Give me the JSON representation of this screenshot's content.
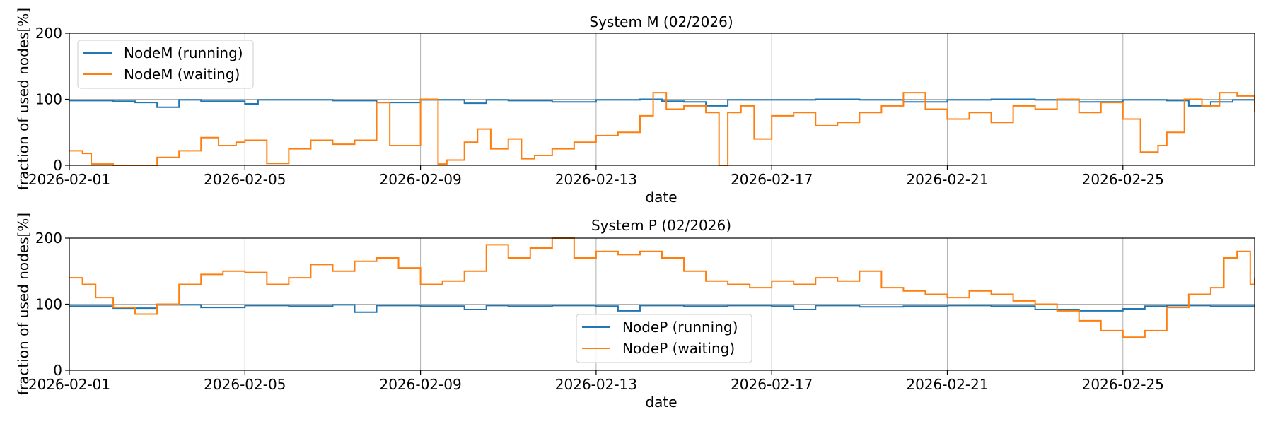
{
  "chart_data": [
    {
      "type": "line",
      "title": "System M (02/2026)",
      "xlabel": "date",
      "ylabel": "fraction of used nodes[%]",
      "xlim": [
        "2026-02-01",
        "2026-02-28"
      ],
      "ylim": [
        0,
        200
      ],
      "yticks": [
        0,
        100,
        200
      ],
      "xticks": [
        "2026-02-01",
        "2026-02-05",
        "2026-02-09",
        "2026-02-13",
        "2026-02-17",
        "2026-02-21",
        "2026-02-25"
      ],
      "grid": true,
      "legend_position": "upper-left",
      "series": [
        {
          "name": "NodeM (running)",
          "color": "#1f77b4",
          "points": [
            [
              0,
              98
            ],
            [
              1,
              97
            ],
            [
              1.5,
              95
            ],
            [
              2,
              88
            ],
            [
              2.5,
              99
            ],
            [
              3,
              97
            ],
            [
              4,
              93
            ],
            [
              4.3,
              99
            ],
            [
              5,
              99
            ],
            [
              6,
              98
            ],
            [
              7,
              95
            ],
            [
              8,
              99
            ],
            [
              9,
              94
            ],
            [
              9.5,
              99
            ],
            [
              10,
              98
            ],
            [
              11,
              96
            ],
            [
              12,
              99
            ],
            [
              13,
              100
            ],
            [
              13.5,
              97
            ],
            [
              14,
              96
            ],
            [
              14.5,
              90
            ],
            [
              15,
              99
            ],
            [
              16,
              99
            ],
            [
              17,
              100
            ],
            [
              18,
              99
            ],
            [
              19,
              96
            ],
            [
              20,
              99
            ],
            [
              21,
              100
            ],
            [
              22,
              99
            ],
            [
              23,
              96
            ],
            [
              24,
              99
            ],
            [
              25,
              98
            ],
            [
              25.5,
              90
            ],
            [
              26,
              96
            ],
            [
              26.5,
              99
            ],
            [
              27,
              98
            ]
          ]
        },
        {
          "name": "NodeM (waiting)",
          "color": "#ff7f0e",
          "points": [
            [
              0,
              22
            ],
            [
              0.3,
              18
            ],
            [
              0.5,
              2
            ],
            [
              1,
              0
            ],
            [
              1.8,
              0
            ],
            [
              2,
              12
            ],
            [
              2.5,
              22
            ],
            [
              3,
              42
            ],
            [
              3.4,
              30
            ],
            [
              3.8,
              35
            ],
            [
              4,
              38
            ],
            [
              4.5,
              3
            ],
            [
              5,
              25
            ],
            [
              5.5,
              38
            ],
            [
              6,
              32
            ],
            [
              6.5,
              38
            ],
            [
              7,
              95
            ],
            [
              7.3,
              30
            ],
            [
              7.6,
              30
            ],
            [
              8,
              100
            ],
            [
              8.4,
              2
            ],
            [
              8.6,
              8
            ],
            [
              9,
              35
            ],
            [
              9.3,
              55
            ],
            [
              9.6,
              25
            ],
            [
              10,
              40
            ],
            [
              10.3,
              10
            ],
            [
              10.6,
              15
            ],
            [
              11,
              25
            ],
            [
              11.5,
              35
            ],
            [
              12,
              45
            ],
            [
              12.5,
              50
            ],
            [
              13,
              75
            ],
            [
              13.3,
              110
            ],
            [
              13.6,
              85
            ],
            [
              14,
              90
            ],
            [
              14.5,
              80
            ],
            [
              14.8,
              0
            ],
            [
              15,
              80
            ],
            [
              15.3,
              90
            ],
            [
              15.6,
              40
            ],
            [
              16,
              75
            ],
            [
              16.5,
              80
            ],
            [
              17,
              60
            ],
            [
              17.5,
              65
            ],
            [
              18,
              80
            ],
            [
              18.5,
              90
            ],
            [
              19,
              110
            ],
            [
              19.5,
              85
            ],
            [
              20,
              70
            ],
            [
              20.5,
              80
            ],
            [
              21,
              65
            ],
            [
              21.5,
              90
            ],
            [
              22,
              85
            ],
            [
              22.5,
              100
            ],
            [
              23,
              80
            ],
            [
              23.5,
              95
            ],
            [
              24,
              70
            ],
            [
              24.4,
              20
            ],
            [
              24.8,
              30
            ],
            [
              25,
              50
            ],
            [
              25.4,
              100
            ],
            [
              25.8,
              90
            ],
            [
              26.2,
              110
            ],
            [
              26.6,
              105
            ],
            [
              27,
              80
            ]
          ]
        }
      ]
    },
    {
      "type": "line",
      "title": "System P (02/2026)",
      "xlabel": "date",
      "ylabel": "fraction of used nodes[%]",
      "xlim": [
        "2026-02-01",
        "2026-02-28"
      ],
      "ylim": [
        0,
        200
      ],
      "yticks": [
        0,
        100,
        200
      ],
      "xticks": [
        "2026-02-01",
        "2026-02-05",
        "2026-02-09",
        "2026-02-13",
        "2026-02-17",
        "2026-02-21",
        "2026-02-25"
      ],
      "grid": true,
      "legend_position": "lower-center",
      "series": [
        {
          "name": "NodeP (running)",
          "color": "#1f77b4",
          "points": [
            [
              0,
              97
            ],
            [
              1,
              94
            ],
            [
              2,
              99
            ],
            [
              3,
              95
            ],
            [
              4,
              98
            ],
            [
              5,
              97
            ],
            [
              6,
              99
            ],
            [
              6.5,
              88
            ],
            [
              7,
              98
            ],
            [
              8,
              97
            ],
            [
              9,
              92
            ],
            [
              9.5,
              98
            ],
            [
              10,
              97
            ],
            [
              11,
              98
            ],
            [
              12,
              97
            ],
            [
              12.5,
              90
            ],
            [
              13,
              98
            ],
            [
              14,
              97
            ],
            [
              15,
              98
            ],
            [
              16,
              97
            ],
            [
              16.5,
              92
            ],
            [
              17,
              98
            ],
            [
              18,
              96
            ],
            [
              19,
              97
            ],
            [
              20,
              98
            ],
            [
              21,
              97
            ],
            [
              22,
              92
            ],
            [
              23,
              90
            ],
            [
              24,
              93
            ],
            [
              24.5,
              97
            ],
            [
              25,
              98
            ],
            [
              26,
              97
            ],
            [
              27,
              95
            ]
          ]
        },
        {
          "name": "NodeP (waiting)",
          "color": "#ff7f0e",
          "points": [
            [
              0,
              140
            ],
            [
              0.3,
              130
            ],
            [
              0.6,
              110
            ],
            [
              1,
              95
            ],
            [
              1.5,
              85
            ],
            [
              2,
              100
            ],
            [
              2.5,
              130
            ],
            [
              3,
              145
            ],
            [
              3.5,
              150
            ],
            [
              4,
              148
            ],
            [
              4.5,
              130
            ],
            [
              5,
              140
            ],
            [
              5.5,
              160
            ],
            [
              6,
              150
            ],
            [
              6.5,
              165
            ],
            [
              7,
              170
            ],
            [
              7.5,
              155
            ],
            [
              8,
              130
            ],
            [
              8.5,
              135
            ],
            [
              9,
              150
            ],
            [
              9.5,
              190
            ],
            [
              10,
              170
            ],
            [
              10.5,
              185
            ],
            [
              11,
              200
            ],
            [
              11.5,
              170
            ],
            [
              12,
              180
            ],
            [
              12.5,
              175
            ],
            [
              13,
              180
            ],
            [
              13.5,
              170
            ],
            [
              14,
              150
            ],
            [
              14.5,
              135
            ],
            [
              15,
              130
            ],
            [
              15.5,
              125
            ],
            [
              16,
              135
            ],
            [
              16.5,
              130
            ],
            [
              17,
              140
            ],
            [
              17.5,
              135
            ],
            [
              18,
              150
            ],
            [
              18.5,
              125
            ],
            [
              19,
              120
            ],
            [
              19.5,
              115
            ],
            [
              20,
              110
            ],
            [
              20.5,
              120
            ],
            [
              21,
              115
            ],
            [
              21.5,
              105
            ],
            [
              22,
              100
            ],
            [
              22.5,
              90
            ],
            [
              23,
              75
            ],
            [
              23.5,
              60
            ],
            [
              24,
              50
            ],
            [
              24.5,
              60
            ],
            [
              25,
              95
            ],
            [
              25.5,
              115
            ],
            [
              26,
              125
            ],
            [
              26.3,
              170
            ],
            [
              26.6,
              180
            ],
            [
              26.9,
              130
            ],
            [
              27,
              140
            ]
          ]
        }
      ]
    }
  ]
}
